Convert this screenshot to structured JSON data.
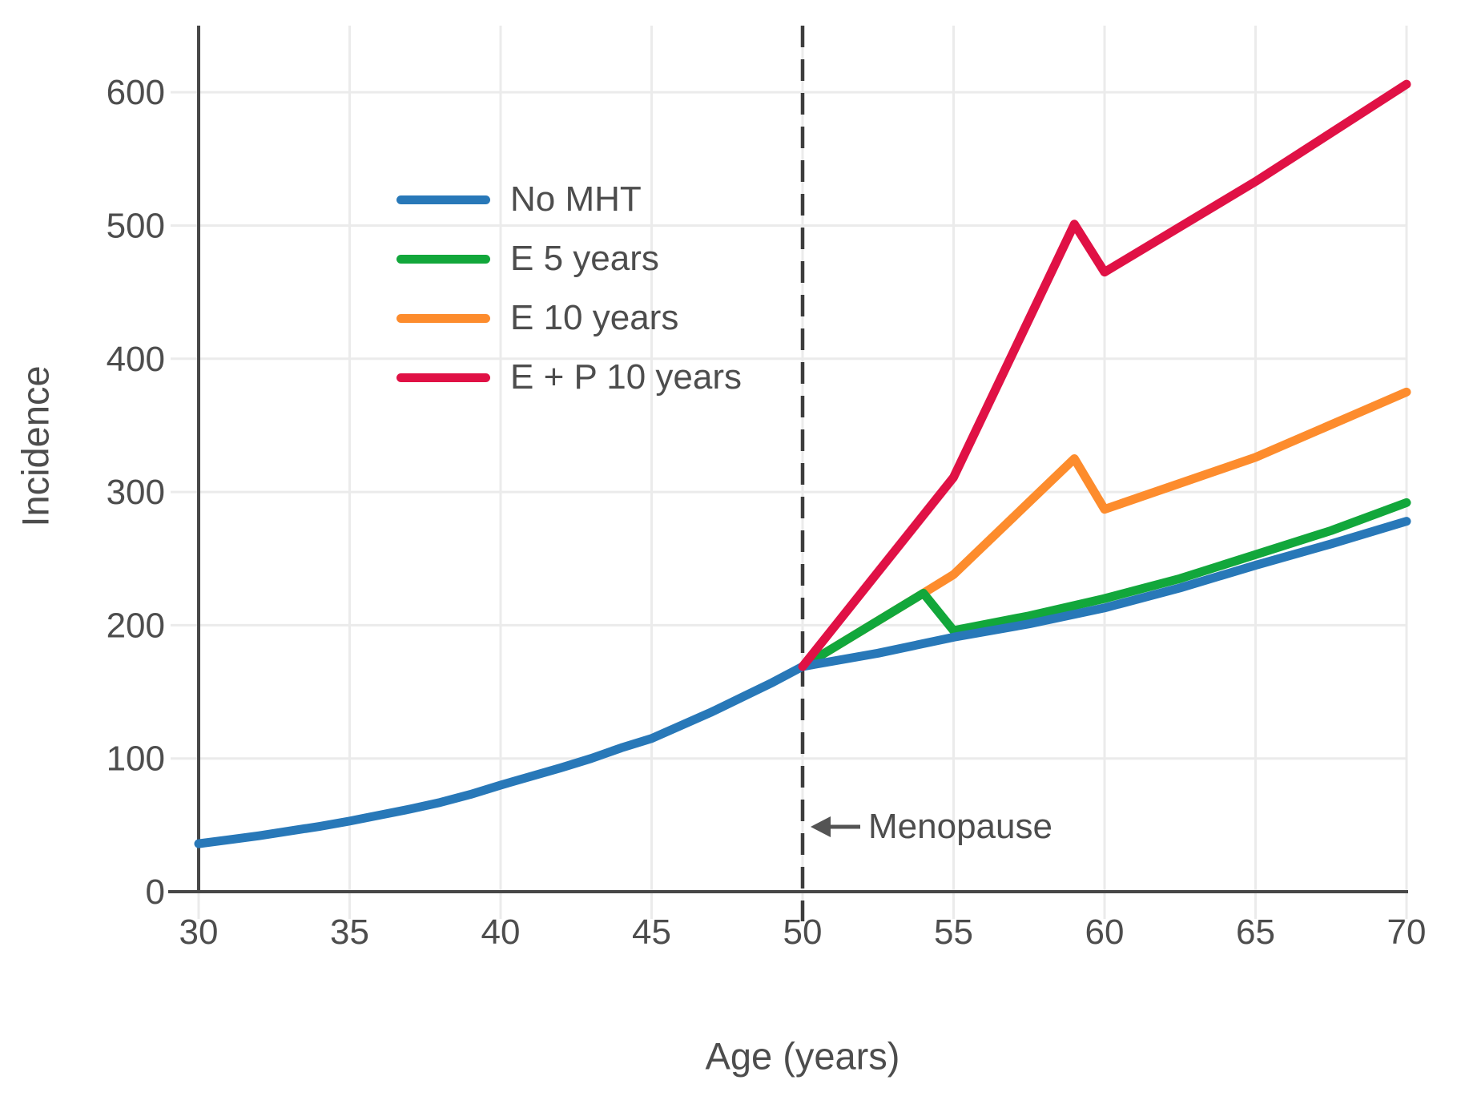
{
  "chart_data": {
    "type": "line",
    "title": "",
    "xlabel": "Age (years)",
    "ylabel": "Incidence",
    "x_ticks": [
      30,
      35,
      40,
      45,
      50,
      55,
      60,
      65,
      70
    ],
    "y_ticks": [
      0,
      100,
      200,
      300,
      400,
      500,
      600
    ],
    "xlim": [
      30,
      70
    ],
    "ylim": [
      0,
      650
    ],
    "grid": true,
    "legend_position": "upper-left-inside",
    "vline": {
      "x": 50,
      "style": "dashed",
      "label": "Menopause"
    },
    "style": {
      "background": "#ffffff",
      "grid_color": "#ebebeb",
      "axis_color": "#474747",
      "text_color": "#4d4d4d",
      "vline_color": "#3d3d3d",
      "arrow_color": "#545454"
    },
    "series": [
      {
        "name": "No MHT",
        "color": "#2878b8",
        "z": 2,
        "points": [
          [
            30,
            36
          ],
          [
            31,
            39
          ],
          [
            32,
            42
          ],
          [
            33,
            45.5
          ],
          [
            34,
            49
          ],
          [
            35,
            53
          ],
          [
            36,
            57.5
          ],
          [
            37,
            62
          ],
          [
            38,
            67
          ],
          [
            39,
            73
          ],
          [
            40,
            80
          ],
          [
            41,
            86.5
          ],
          [
            42,
            93
          ],
          [
            43,
            100
          ],
          [
            44,
            108
          ],
          [
            45,
            115
          ],
          [
            46,
            125
          ],
          [
            47,
            135
          ],
          [
            48,
            146
          ],
          [
            49,
            157
          ],
          [
            50,
            169
          ],
          [
            52.5,
            179
          ],
          [
            55,
            191
          ],
          [
            57.5,
            201
          ],
          [
            60,
            213
          ],
          [
            62.5,
            228
          ],
          [
            65,
            245
          ],
          [
            67.5,
            261
          ],
          [
            70,
            278
          ]
        ]
      },
      {
        "name": "E 5 years",
        "color": "#12a73b",
        "z": 1,
        "points": [
          [
            50,
            169
          ],
          [
            54,
            224
          ],
          [
            55,
            196
          ],
          [
            57.5,
            207
          ],
          [
            60,
            220
          ],
          [
            62.5,
            235
          ],
          [
            65,
            253
          ],
          [
            67.5,
            271
          ],
          [
            70,
            292
          ]
        ]
      },
      {
        "name": "E 10 years",
        "color": "#fd8c2d",
        "z": 0,
        "points": [
          [
            50,
            169
          ],
          [
            54,
            224
          ],
          [
            55,
            238
          ],
          [
            59,
            325
          ],
          [
            60,
            287
          ],
          [
            65,
            326
          ],
          [
            70,
            375
          ]
        ]
      },
      {
        "name": "E + P 10 years",
        "color": "#e01145",
        "z": 3,
        "points": [
          [
            50,
            169
          ],
          [
            52.5,
            240
          ],
          [
            55,
            311
          ],
          [
            59,
            501
          ],
          [
            60,
            465
          ],
          [
            65,
            533
          ],
          [
            70,
            606
          ]
        ]
      }
    ]
  }
}
